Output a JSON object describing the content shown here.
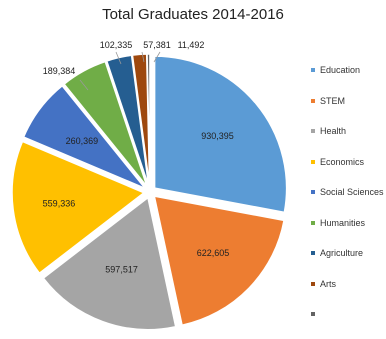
{
  "chart_data": {
    "type": "pie",
    "title": "Total Graduates 2014-2016",
    "legend_position": "right",
    "exploded": true,
    "slices": [
      {
        "label": "Education",
        "value": 930395,
        "display": "930,395",
        "color": "#5b9bd5"
      },
      {
        "label": "STEM",
        "value": 622605,
        "display": "622,605",
        "color": "#ed7d31"
      },
      {
        "label": "Health",
        "value": 597517,
        "display": "597,517",
        "color": "#a5a5a5"
      },
      {
        "label": "Economics",
        "value": 559336,
        "display": "559,336",
        "color": "#ffc000"
      },
      {
        "label": "Social Sciences",
        "value": 260369,
        "display": "260,369",
        "color": "#4472c4"
      },
      {
        "label": "Humanities",
        "value": 189384,
        "display": "189,384",
        "color": "#70ad47"
      },
      {
        "label": "Agriculture",
        "value": 102335,
        "display": "102,335",
        "color": "#255e91"
      },
      {
        "label": "Arts",
        "value": 57381,
        "display": "57,381",
        "color": "#9e480e"
      },
      {
        "label": "",
        "value": 11492,
        "display": "11,492",
        "color": "#636363"
      }
    ]
  }
}
